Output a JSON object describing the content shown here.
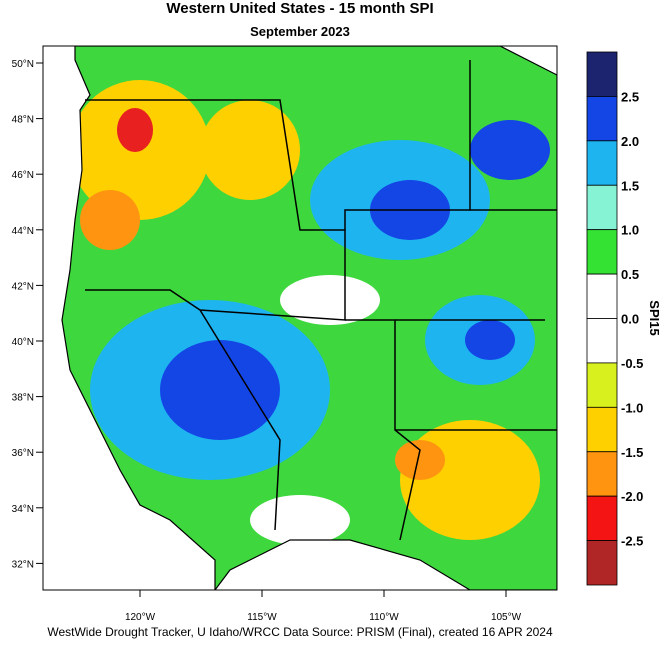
{
  "header": {
    "title": "Western United States - 15 month SPI",
    "subtitle": "September 2023"
  },
  "map": {
    "lat_labels": [
      "50°N",
      "48°N",
      "46°N",
      "44°N",
      "42°N",
      "40°N",
      "38°N",
      "36°N",
      "34°N",
      "32°N"
    ],
    "lon_labels": [
      "120°W",
      "115°W",
      "110°W",
      "105°W"
    ]
  },
  "colorbar": {
    "title": "SPI15",
    "labels": [
      "2.5",
      "2.0",
      "1.5",
      "1.0",
      "0.5",
      "0.0",
      "-0.5",
      "-1.0",
      "-1.5",
      "-2.0",
      "-2.5"
    ],
    "colors": [
      "#1c2470",
      "#1446e6",
      "#1eb4f0",
      "#86f4d4",
      "#34e234",
      "#ffffff",
      "#ffffff",
      "#d8f01e",
      "#ffd000",
      "#ff9410",
      "#f41414",
      "#b02626"
    ]
  },
  "footer": "WestWide Drought Tracker, U Idaho/WRCC Data Source: PRISM (Final), created 16 APR 2024"
}
